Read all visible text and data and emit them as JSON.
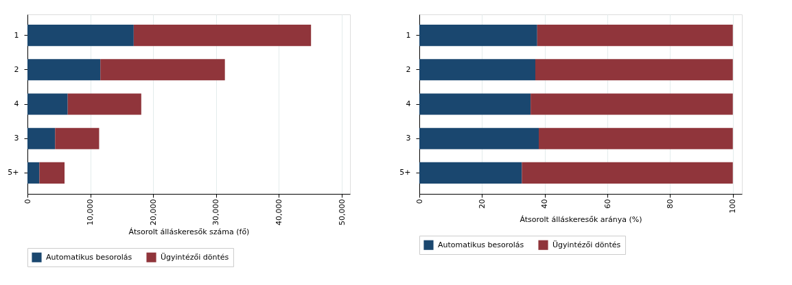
{
  "chart_data": [
    {
      "type": "bar",
      "orientation": "horizontal",
      "stacked": true,
      "categories": [
        "1",
        "2",
        "4",
        "3",
        "5+"
      ],
      "xlabel": "Átsorolt álláskeresők száma (fő)",
      "xlim": [
        0,
        51300
      ],
      "xticks": [
        {
          "value": 0,
          "label": "0"
        },
        {
          "value": 10000,
          "label": "10,000"
        },
        {
          "value": 20000,
          "label": "20,000"
        },
        {
          "value": 30000,
          "label": "30,000"
        },
        {
          "value": 40000,
          "label": "40,000"
        },
        {
          "value": 50000,
          "label": "50,000"
        }
      ],
      "grid": "x",
      "legend": "bottom",
      "series": [
        {
          "name": "Automatikus besorolás",
          "color": "#1a476f",
          "values": [
            16900,
            11600,
            6400,
            4400,
            1900
          ]
        },
        {
          "name": "Ügyintézői döntés",
          "color": "#90353b",
          "values": [
            28200,
            19800,
            11700,
            7000,
            4000
          ]
        }
      ]
    },
    {
      "type": "bar",
      "orientation": "horizontal",
      "stacked": true,
      "categories": [
        "1",
        "2",
        "4",
        "3",
        "5+"
      ],
      "xlabel": "Átsorolt álláskeresők aránya (%)",
      "xlim": [
        0,
        102.9
      ],
      "xticks": [
        0,
        20,
        40,
        60,
        80,
        100
      ],
      "grid": "x",
      "legend": "bottom",
      "series": [
        {
          "name": "Automatikus besorolás",
          "color": "#1a476f",
          "values": [
            37.6,
            37.0,
            35.5,
            38.1,
            32.7
          ]
        },
        {
          "name": "Ügyintézői döntés",
          "color": "#90353b",
          "values": [
            62.4,
            63.0,
            64.5,
            61.9,
            67.3
          ]
        }
      ]
    }
  ]
}
